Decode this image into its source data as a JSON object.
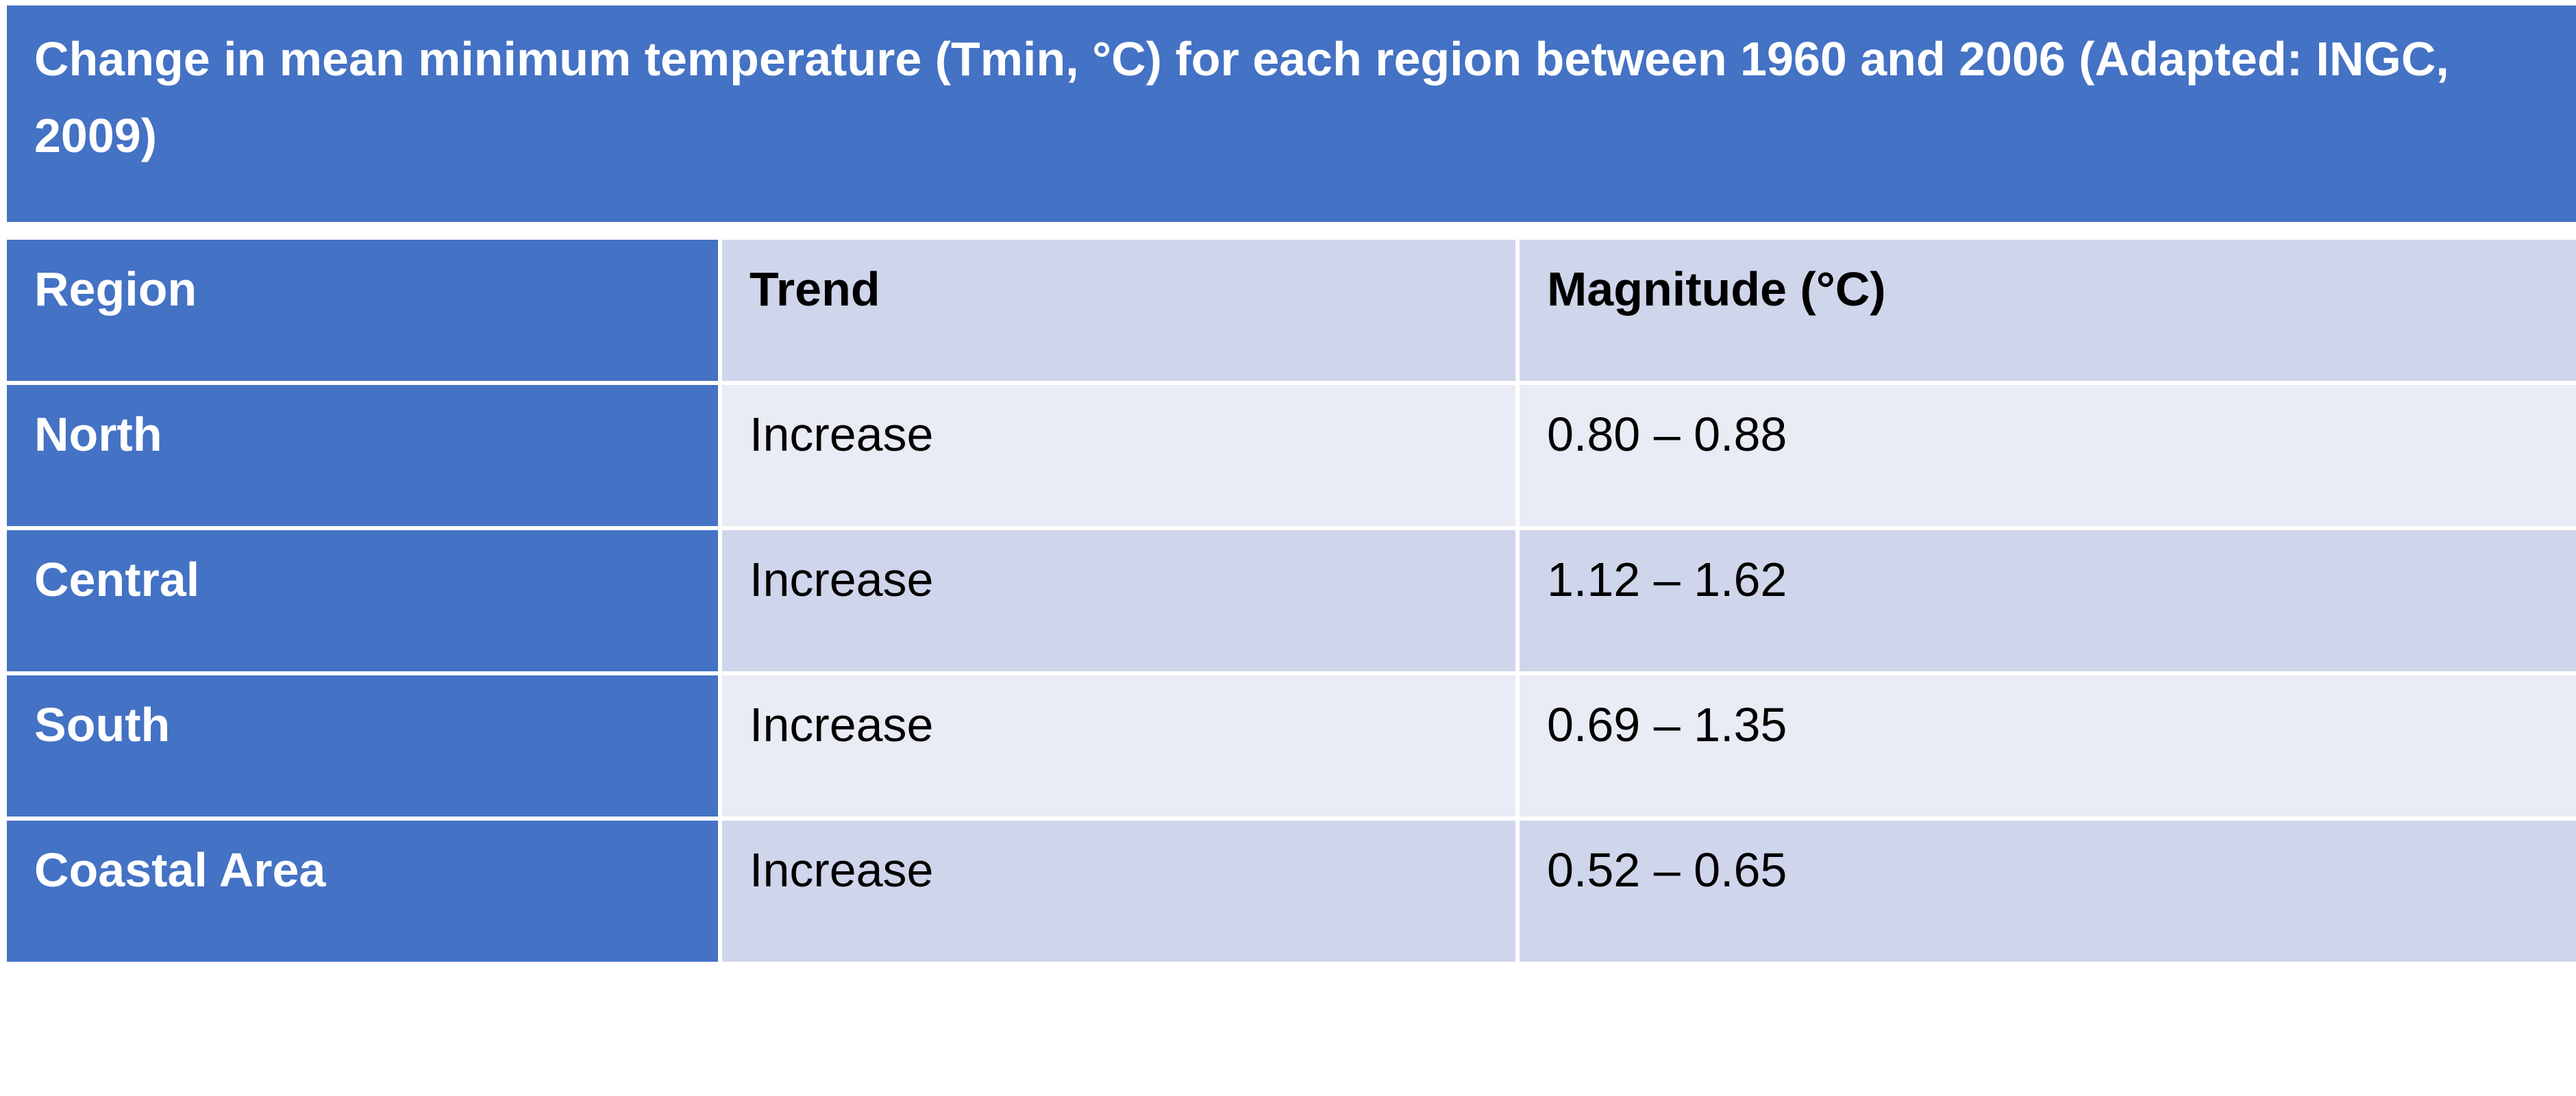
{
  "title": "Change in mean minimum temperature (Tmin, °C) for each region between 1960 and 2006 (Adapted: INGC, 2009)",
  "colors": {
    "header_blue": "#4472C4",
    "row_dark": "#CFD5EA",
    "row_light": "#E9EBF5",
    "header_text": "#ffffff",
    "body_text": "#000000"
  },
  "table": {
    "headers": {
      "region": "Region",
      "trend": "Trend",
      "magnitude": "Magnitude (°C)"
    },
    "rows": [
      {
        "region": "North",
        "trend": "Increase",
        "magnitude": "0.80 – 0.88"
      },
      {
        "region": "Central",
        "trend": "Increase",
        "magnitude": "1.12 – 1.62"
      },
      {
        "region": "South",
        "trend": "Increase",
        "magnitude": "0.69 – 1.35"
      },
      {
        "region": "Coastal Area",
        "trend": "Increase",
        "magnitude": "0.52 – 0.65"
      }
    ]
  }
}
